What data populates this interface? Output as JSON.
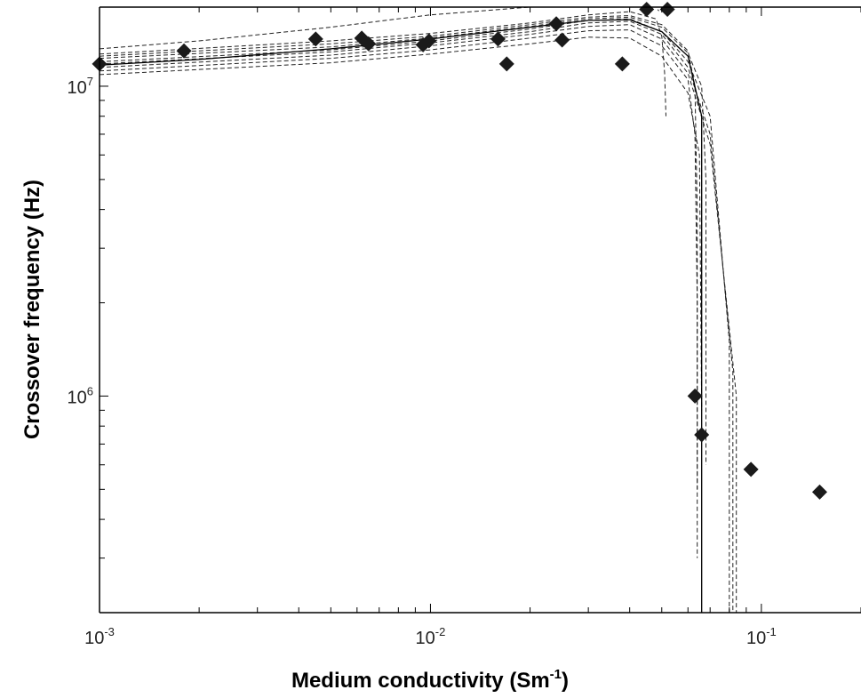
{
  "chart_data": {
    "type": "scatter",
    "xlabel": "Medium conductivity (Sm",
    "xlabel_sup": "-1",
    "xlabel_end": ")",
    "ylabel": "Crossover frequency (Hz)",
    "x_scale": "log",
    "y_scale": "log",
    "xlim": [
      0.001,
      0.2
    ],
    "ylim": [
      200000,
      18000000
    ],
    "grid": false,
    "x_ticks": [
      {
        "value": 0.001,
        "base": "10",
        "exp": "-3"
      },
      {
        "value": 0.01,
        "base": "10",
        "exp": "-2"
      },
      {
        "value": 0.1,
        "base": "10",
        "exp": "-1"
      }
    ],
    "y_ticks": [
      {
        "value": 1000000,
        "base": "10",
        "exp": "6"
      },
      {
        "value": 10000000,
        "base": "10",
        "exp": "7"
      }
    ],
    "points": [
      {
        "x": 0.001,
        "y": 11800000
      },
      {
        "x": 0.0018,
        "y": 13000000
      },
      {
        "x": 0.0045,
        "y": 14200000
      },
      {
        "x": 0.0062,
        "y": 14300000
      },
      {
        "x": 0.0065,
        "y": 13700000
      },
      {
        "x": 0.0095,
        "y": 13600000
      },
      {
        "x": 0.0099,
        "y": 14000000
      },
      {
        "x": 0.016,
        "y": 14200000
      },
      {
        "x": 0.017,
        "y": 11800000
      },
      {
        "x": 0.024,
        "y": 15900000
      },
      {
        "x": 0.025,
        "y": 14100000
      },
      {
        "x": 0.038,
        "y": 11800000
      },
      {
        "x": 0.045,
        "y": 17700000
      },
      {
        "x": 0.052,
        "y": 17700000
      },
      {
        "x": 0.063,
        "y": 1000000
      },
      {
        "x": 0.066,
        "y": 750000
      },
      {
        "x": 0.093,
        "y": 580000
      },
      {
        "x": 0.15,
        "y": 490000
      }
    ],
    "fit_line": {
      "style": "solid",
      "x": [
        0.001,
        0.002,
        0.005,
        0.01,
        0.02,
        0.03,
        0.04,
        0.05,
        0.06,
        0.066,
        0.066
      ],
      "y": [
        11700000,
        12200000,
        13200000,
        14200000,
        15500000,
        16300000,
        16400000,
        15000000,
        12500000,
        8000000,
        200000
      ]
    },
    "uncertainty_lines": {
      "style": "dashed",
      "curves": [
        {
          "x": [
            0.001,
            0.002,
            0.005,
            0.01,
            0.02,
            0.03,
            0.04,
            0.046,
            0.048,
            0.049
          ],
          "y": [
            13200000,
            14000000,
            15500000,
            17000000,
            18800000,
            19600000,
            19800000,
            19800000,
            19000000,
            17500000
          ]
        },
        {
          "x": [
            0.001,
            0.005,
            0.01,
            0.02,
            0.03,
            0.04,
            0.048,
            0.05,
            0.051,
            0.0515
          ],
          "y": [
            12700000,
            14000000,
            14800000,
            16000000,
            17000000,
            17400000,
            16500000,
            14500000,
            11000000,
            8000000
          ]
        },
        {
          "x": [
            0.001,
            0.005,
            0.01,
            0.02,
            0.03,
            0.04,
            0.05,
            0.06,
            0.063,
            0.064,
            0.064
          ],
          "y": [
            12500000,
            13700000,
            14500000,
            15800000,
            16700000,
            16900000,
            15800000,
            13000000,
            10000000,
            4000000,
            500000
          ]
        },
        {
          "x": [
            0.001,
            0.005,
            0.01,
            0.02,
            0.03,
            0.04,
            0.05,
            0.06,
            0.066,
            0.068,
            0.068
          ],
          "y": [
            12300000,
            13400000,
            14300000,
            15600000,
            16500000,
            16700000,
            15500000,
            12800000,
            10000000,
            5000000,
            600000
          ]
        },
        {
          "x": [
            0.001,
            0.005,
            0.01,
            0.02,
            0.03,
            0.04,
            0.05,
            0.06,
            0.07,
            0.08,
            0.08
          ],
          "y": [
            12000000,
            13100000,
            14000000,
            15300000,
            16300000,
            16500000,
            15000000,
            12000000,
            8000000,
            1500000,
            200000
          ]
        },
        {
          "x": [
            0.001,
            0.005,
            0.01,
            0.02,
            0.03,
            0.04,
            0.05,
            0.06,
            0.07,
            0.082,
            0.082
          ],
          "y": [
            11800000,
            12900000,
            13800000,
            15000000,
            16000000,
            16200000,
            14700000,
            11500000,
            7000000,
            1200000,
            200000
          ]
        },
        {
          "x": [
            0.001,
            0.005,
            0.01,
            0.02,
            0.03,
            0.04,
            0.05,
            0.06,
            0.07,
            0.084,
            0.084
          ],
          "y": [
            11500000,
            12600000,
            13500000,
            14700000,
            15600000,
            15800000,
            14200000,
            11000000,
            6500000,
            1000000,
            200000
          ]
        },
        {
          "x": [
            0.001,
            0.005,
            0.01,
            0.02,
            0.03,
            0.04,
            0.05,
            0.06,
            0.063,
            0.064,
            0.064
          ],
          "y": [
            11200000,
            12300000,
            13100000,
            14300000,
            15100000,
            15200000,
            13500000,
            10500000,
            7000000,
            2000000,
            300000
          ]
        },
        {
          "x": [
            0.001,
            0.005,
            0.01,
            0.02,
            0.03,
            0.04,
            0.05,
            0.06,
            0.065,
            0.066
          ],
          "y": [
            10900000,
            11900000,
            12700000,
            13700000,
            14400000,
            14300000,
            12500000,
            9500000,
            6000000,
            900000
          ]
        }
      ]
    }
  }
}
